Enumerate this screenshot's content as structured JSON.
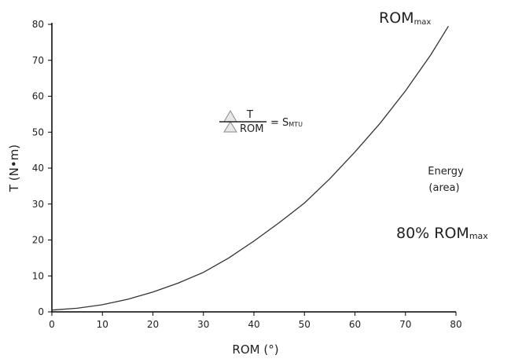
{
  "chart_data": {
    "type": "line",
    "xlabel": "ROM (°)",
    "ylabel": "T (N•m)",
    "xlim": [
      0,
      80
    ],
    "ylim": [
      0,
      80
    ],
    "xticks": [
      "0",
      "10",
      "20",
      "30",
      "40",
      "50",
      "60",
      "70",
      "80"
    ],
    "yticks": [
      "0",
      "10",
      "20",
      "30",
      "40",
      "50",
      "60",
      "70",
      "80"
    ],
    "grid": false,
    "series": [
      {
        "x": [
          0,
          5,
          10,
          15,
          20,
          25,
          30,
          35,
          40,
          45,
          50,
          55,
          60,
          65,
          70,
          75,
          78.5
        ],
        "y": [
          0.5,
          1.0,
          2.0,
          3.5,
          5.5,
          8.0,
          11.0,
          15.0,
          19.7,
          24.8,
          30.3,
          37.0,
          44.5,
          52.5,
          61.5,
          71.5,
          79.5
        ]
      }
    ],
    "annotations": {
      "rom_max_main": "ROM",
      "rom_max_sub": "max",
      "slope_numerator": "T",
      "slope_denominator": "ROM",
      "slope_equals": "= S",
      "slope_sub": "MTU",
      "energy_line1": "Energy",
      "energy_line2": "(area)",
      "pct_main": "80% ROM",
      "pct_sub": "max"
    }
  }
}
